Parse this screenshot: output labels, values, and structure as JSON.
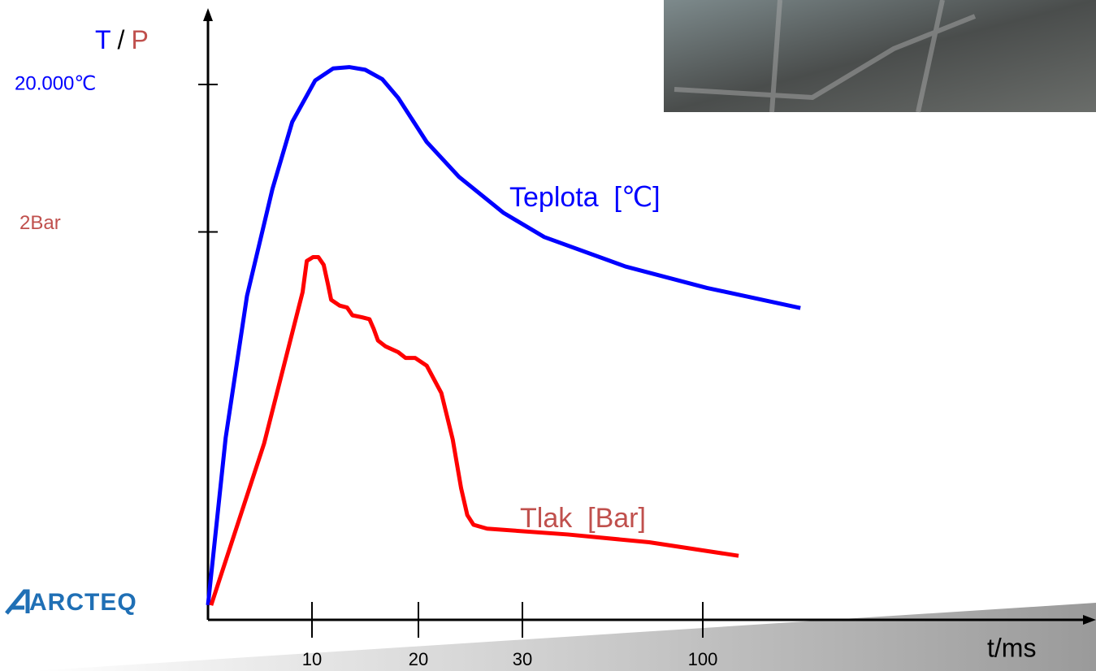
{
  "chart_data": {
    "type": "line",
    "title_t": "T",
    "title_sep": "/",
    "title_p": "P",
    "xlabel": "t/ms",
    "logo": "ARCTEQ",
    "xlim": [
      0,
      150
    ],
    "xticks": [
      10,
      20,
      30,
      100
    ],
    "ylim": [
      0,
      20000
    ],
    "yticks": [
      {
        "value": 20000,
        "label": "20.000℃"
      }
    ],
    "y2lim": [
      0,
      2.76
    ],
    "y2ticks": [
      {
        "value": 2,
        "label": "2Bar"
      }
    ],
    "series": [
      {
        "name": "Teplota  [℃]",
        "color": "#0000ff",
        "x": [
          0,
          1.7,
          3.75,
          6.2,
          8.1,
          10.3,
          12,
          13.5,
          15,
          16.6,
          18.1,
          20.8,
          23.9,
          28.2,
          38.5,
          70,
          101.6,
          137.9
        ],
        "values": [
          550,
          6800,
          12100,
          16100,
          18600,
          20150,
          20600,
          20650,
          20550,
          20200,
          19500,
          17850,
          16550,
          15200,
          14300,
          13200,
          12400,
          11650
        ]
      },
      {
        "name": "Tlak  [Bar]",
        "color": "#ff0000",
        "axis": "y2",
        "x": [
          0.3,
          5.4,
          9.1,
          9.5,
          10.1,
          10.6,
          11.1,
          11.5,
          11.8,
          12.6,
          13.3,
          13.8,
          14.7,
          15.4,
          15.8,
          16.2,
          16.9,
          18.1,
          18.8,
          19.7,
          20.8,
          22.2,
          23.3,
          24.1,
          24.7,
          25.3,
          26.6,
          47.6,
          79.2,
          113.9
        ],
        "values": [
          0.075,
          0.91,
          1.69,
          1.85,
          1.87,
          1.87,
          1.83,
          1.73,
          1.65,
          1.62,
          1.61,
          1.57,
          1.56,
          1.55,
          1.5,
          1.44,
          1.41,
          1.38,
          1.35,
          1.35,
          1.31,
          1.17,
          0.93,
          0.68,
          0.54,
          0.49,
          0.47,
          0.44,
          0.4,
          0.33
        ]
      }
    ]
  }
}
